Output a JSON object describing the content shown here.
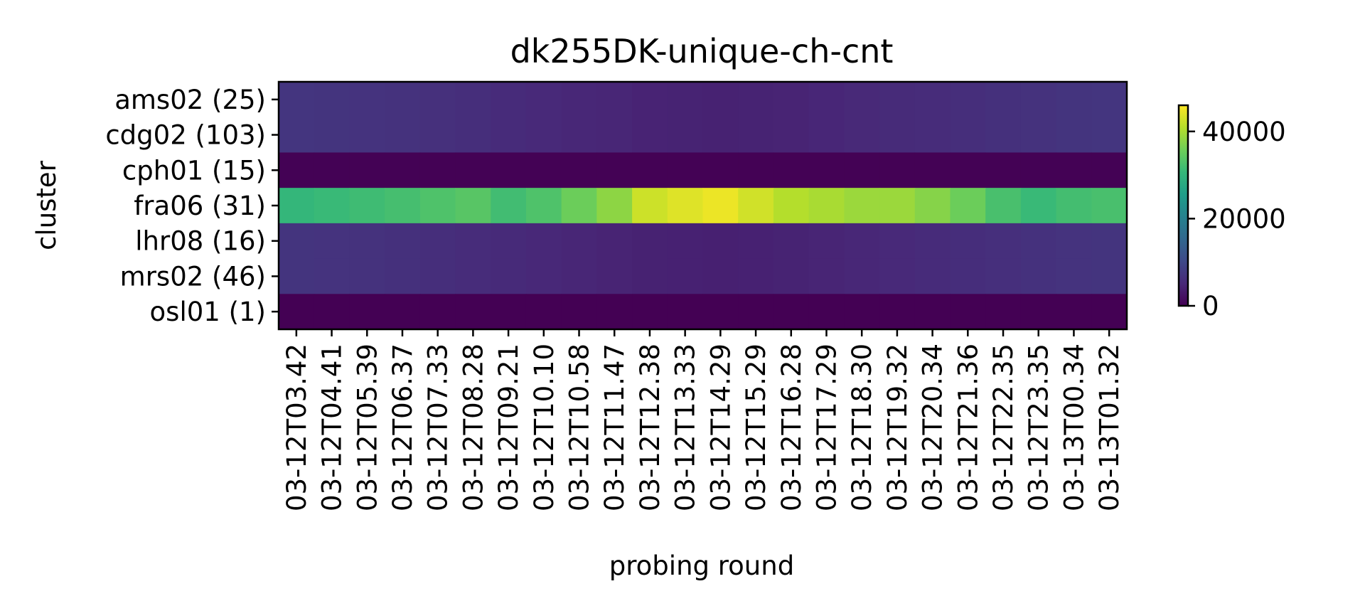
{
  "chart_data": {
    "type": "heatmap",
    "title": "dk255DK-unique-ch-cnt",
    "xlabel": "probing round",
    "ylabel": "cluster",
    "rows": [
      "ams02 (25)",
      "cdg02 (103)",
      "cph01 (15)",
      "fra06 (31)",
      "lhr08 (16)",
      "mrs02 (46)",
      "osl01 (1)"
    ],
    "columns": [
      "03-12T03.42",
      "03-12T04.41",
      "03-12T05.39",
      "03-12T06.37",
      "03-12T07.33",
      "03-12T08.28",
      "03-12T09.21",
      "03-12T10.10",
      "03-12T10.58",
      "03-12T11.47",
      "03-12T12.38",
      "03-12T13.33",
      "03-12T14.29",
      "03-12T15.29",
      "03-12T16.28",
      "03-12T17.29",
      "03-12T18.30",
      "03-12T19.32",
      "03-12T20.34",
      "03-12T21.36",
      "03-12T22.35",
      "03-12T23.35",
      "03-13T00.34",
      "03-13T01.32"
    ],
    "values": [
      [
        7200,
        7000,
        6800,
        6600,
        6300,
        6000,
        5600,
        5300,
        5000,
        4800,
        4500,
        4400,
        4300,
        4400,
        4600,
        4900,
        5200,
        5500,
        5800,
        6100,
        6400,
        6700,
        7000,
        7200
      ],
      [
        7200,
        7000,
        6800,
        6600,
        6300,
        6000,
        5600,
        5300,
        5000,
        4800,
        4500,
        4400,
        4300,
        4400,
        4600,
        4900,
        5200,
        5500,
        5800,
        6100,
        6400,
        6700,
        7000,
        7200
      ],
      [
        150,
        150,
        140,
        140,
        130,
        130,
        120,
        120,
        110,
        110,
        100,
        100,
        100,
        100,
        110,
        110,
        120,
        120,
        130,
        130,
        140,
        140,
        150,
        150
      ],
      [
        30500,
        31000,
        31600,
        32200,
        33000,
        33800,
        31800,
        33000,
        35500,
        38000,
        42500,
        43800,
        44800,
        42800,
        40800,
        40000,
        39000,
        39000,
        37500,
        35500,
        32500,
        31000,
        32000,
        32500
      ],
      [
        7000,
        6800,
        6600,
        6400,
        6100,
        5800,
        5400,
        5100,
        4800,
        4600,
        4300,
        4200,
        4100,
        4200,
        4400,
        4700,
        5000,
        5300,
        5600,
        5900,
        6200,
        6500,
        6800,
        7000
      ],
      [
        7000,
        6800,
        6600,
        6400,
        6100,
        5800,
        5400,
        5100,
        4800,
        4600,
        4300,
        4200,
        4100,
        4200,
        4400,
        4700,
        5000,
        5300,
        5600,
        5900,
        6200,
        6500,
        6800,
        7000
      ],
      [
        30,
        30,
        30,
        30,
        30,
        30,
        30,
        30,
        30,
        30,
        30,
        30,
        30,
        30,
        30,
        30,
        30,
        30,
        30,
        30,
        30,
        30,
        30,
        30
      ]
    ],
    "colorbar": {
      "colormap": "viridis",
      "vmin": 0,
      "vmax": 46000,
      "ticks": [
        0,
        20000,
        40000
      ],
      "tick_labels": [
        "0",
        "20000",
        "40000"
      ]
    },
    "grid": false
  }
}
